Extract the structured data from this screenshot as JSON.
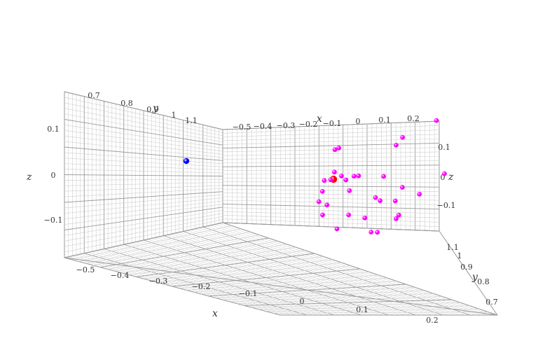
{
  "chart_data": {
    "type": "scatter3d",
    "title": "",
    "axes": {
      "x": {
        "label": "x",
        "range": [
          -0.55,
          0.25
        ],
        "ticks": [
          "−0.5",
          "−0.4",
          "−0.3",
          "−0.2",
          "−0.1",
          "0",
          "0.1",
          "0.2"
        ]
      },
      "y": {
        "label": "y",
        "range": [
          0.65,
          1.15
        ],
        "ticks": [
          "0.7",
          "0.8",
          "0.9",
          "1",
          "1.1"
        ]
      },
      "z": {
        "label": "z",
        "range": [
          -0.15,
          0.15
        ],
        "ticks": [
          "−0.1",
          "0",
          "0.1"
        ]
      }
    },
    "grid": true,
    "series": [
      {
        "color": "#0000ff",
        "points": [
          [
            -0.7,
            1.0,
            0.03
          ]
        ]
      },
      {
        "color": "#ff0000",
        "points": [
          [
            -0.05,
            0.98,
            0.0
          ]
        ]
      },
      {
        "color": "#ff00ff",
        "points": [
          [
            -0.12,
            0.95,
            0.09
          ],
          [
            -0.09,
            1.0,
            0.09
          ],
          [
            0.1,
            0.93,
            0.1
          ],
          [
            0.13,
            0.95,
            0.12
          ],
          [
            0.24,
            0.9,
            0.17
          ],
          [
            0.26,
            0.87,
            0.02
          ],
          [
            -0.1,
            1.02,
            0.02
          ],
          [
            -0.08,
            1.0,
            0.01
          ],
          [
            -0.07,
            0.98,
            0.0
          ],
          [
            -0.04,
            0.98,
            0.01
          ],
          [
            -0.02,
            0.99,
            0.01
          ],
          [
            0.06,
            0.95,
            0.01
          ],
          [
            -0.15,
            0.98,
            0.0
          ],
          [
            -0.12,
            1.0,
            0.0
          ],
          [
            -0.06,
            0.97,
            -0.03
          ],
          [
            0.03,
            0.95,
            -0.05
          ],
          [
            0.12,
            0.92,
            -0.02
          ],
          [
            0.18,
            0.91,
            -0.04
          ],
          [
            -0.17,
            0.98,
            -0.06
          ],
          [
            -0.14,
            0.98,
            -0.07
          ],
          [
            0.05,
            0.96,
            -0.06
          ],
          [
            0.1,
            0.94,
            -0.06
          ],
          [
            -0.15,
            1.0,
            -0.1
          ],
          [
            -0.06,
            0.98,
            -0.1
          ],
          [
            0.11,
            0.93,
            -0.1
          ],
          [
            -0.1,
            0.99,
            -0.14
          ],
          [
            0.02,
            0.97,
            -0.15
          ],
          [
            0.04,
            0.96,
            -0.15
          ],
          [
            0.0,
            0.98,
            -0.11
          ],
          [
            -0.16,
            0.97,
            -0.03
          ],
          [
            0.1,
            0.93,
            -0.11
          ]
        ]
      }
    ]
  }
}
